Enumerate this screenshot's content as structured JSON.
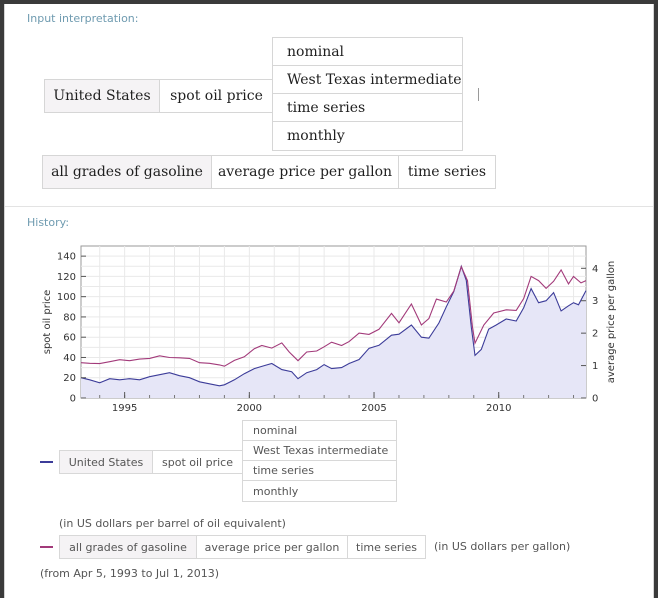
{
  "input_interpretation": {
    "label": "Input interpretation:",
    "row1": {
      "country": "United States",
      "quantity": "spot oil price",
      "options": [
        "nominal",
        "West Texas intermediate",
        "time series",
        "monthly"
      ]
    },
    "row2": {
      "product": "all grades of gasoline",
      "measure": "average price per gallon",
      "mode": "time series"
    }
  },
  "history": {
    "label": "History:",
    "legend": {
      "series1": {
        "country": "United States",
        "quantity": "spot oil price",
        "options": [
          "nominal",
          "West Texas intermediate",
          "time series",
          "monthly"
        ],
        "unit_note": "(in US dollars per barrel of oil equivalent)"
      },
      "series2": {
        "product": "all grades of gasoline",
        "measure": "average price per gallon",
        "mode": "time series",
        "unit_note": "(in US dollars per gallon)"
      },
      "range_note": "(from Apr 5, 1993 to Jul 1, 2013)"
    }
  },
  "colors": {
    "oil": "#3c3c99",
    "gasoline": "#a23a7a",
    "fill": "#e6e6f7",
    "label": "#6f9bb0"
  },
  "chart_data": {
    "type": "line",
    "ylabel": "spot oil price",
    "y2label": "average price per gallon",
    "xlim": [
      1993.25,
      2013.5
    ],
    "ylim": [
      0,
      150
    ],
    "y2lim": [
      0,
      4.6875
    ],
    "x_ticks": [
      1995,
      2000,
      2005,
      2010
    ],
    "y_ticks": [
      0,
      20,
      40,
      60,
      80,
      100,
      120,
      140
    ],
    "y2_ticks": [
      0,
      1,
      2,
      3,
      4
    ],
    "grid": true,
    "series": [
      {
        "name": "spot oil price",
        "axis": "left",
        "color": "#3c3c99",
        "x": [
          1993.25,
          1993.6,
          1994.0,
          1994.4,
          1994.8,
          1995.2,
          1995.6,
          1996.0,
          1996.4,
          1996.8,
          1997.2,
          1997.6,
          1998.0,
          1998.4,
          1998.8,
          1999.0,
          1999.4,
          1999.8,
          2000.2,
          2000.6,
          2000.9,
          2001.3,
          2001.7,
          2001.95,
          2002.3,
          2002.7,
          2003.0,
          2003.3,
          2003.7,
          2004.0,
          2004.4,
          2004.8,
          2005.2,
          2005.7,
          2006.0,
          2006.5,
          2006.9,
          2007.2,
          2007.6,
          2007.9,
          2008.2,
          2008.5,
          2008.7,
          2008.9,
          2009.05,
          2009.3,
          2009.6,
          2009.9,
          2010.3,
          2010.7,
          2011.0,
          2011.3,
          2011.6,
          2011.9,
          2012.2,
          2012.5,
          2012.8,
          2013.0,
          2013.2,
          2013.5
        ],
        "y": [
          20,
          18,
          15,
          19,
          18,
          19,
          18,
          21,
          23,
          25,
          22,
          20,
          16,
          14,
          12,
          13,
          18,
          24,
          29,
          32,
          34,
          28,
          26,
          19,
          25,
          28,
          33,
          29,
          30,
          34,
          38,
          49,
          52,
          62,
          63,
          72,
          60,
          59,
          74,
          90,
          105,
          130,
          116,
          70,
          42,
          48,
          68,
          72,
          78,
          76,
          89,
          108,
          94,
          96,
          104,
          86,
          91,
          94,
          92,
          106
        ]
      },
      {
        "name": "average price per gallon",
        "axis": "right",
        "color": "#a23a7a",
        "x": [
          1993.25,
          1993.6,
          1994.0,
          1994.4,
          1994.8,
          1995.2,
          1995.6,
          1996.0,
          1996.4,
          1996.8,
          1997.2,
          1997.6,
          1998.0,
          1998.4,
          1998.8,
          1999.0,
          1999.4,
          1999.8,
          2000.2,
          2000.5,
          2000.9,
          2001.3,
          2001.6,
          2001.95,
          2002.3,
          2002.7,
          2003.0,
          2003.3,
          2003.7,
          2004.0,
          2004.4,
          2004.8,
          2005.2,
          2005.7,
          2006.0,
          2006.5,
          2006.9,
          2007.2,
          2007.5,
          2007.9,
          2008.2,
          2008.5,
          2008.75,
          2008.95,
          2009.05,
          2009.4,
          2009.8,
          2010.3,
          2010.7,
          2011.0,
          2011.3,
          2011.6,
          2011.9,
          2012.2,
          2012.5,
          2012.8,
          2013.0,
          2013.3,
          2013.5
        ],
        "y": [
          1.09,
          1.07,
          1.06,
          1.12,
          1.18,
          1.15,
          1.2,
          1.22,
          1.3,
          1.25,
          1.24,
          1.22,
          1.09,
          1.07,
          1.02,
          0.98,
          1.16,
          1.27,
          1.52,
          1.62,
          1.54,
          1.7,
          1.42,
          1.15,
          1.42,
          1.45,
          1.58,
          1.72,
          1.62,
          1.74,
          2.0,
          1.96,
          2.12,
          2.61,
          2.32,
          2.9,
          2.25,
          2.45,
          3.05,
          2.96,
          3.3,
          4.05,
          3.62,
          2.18,
          1.69,
          2.25,
          2.62,
          2.72,
          2.7,
          3.07,
          3.75,
          3.62,
          3.38,
          3.6,
          3.95,
          3.52,
          3.75,
          3.55,
          3.62
        ]
      }
    ]
  }
}
